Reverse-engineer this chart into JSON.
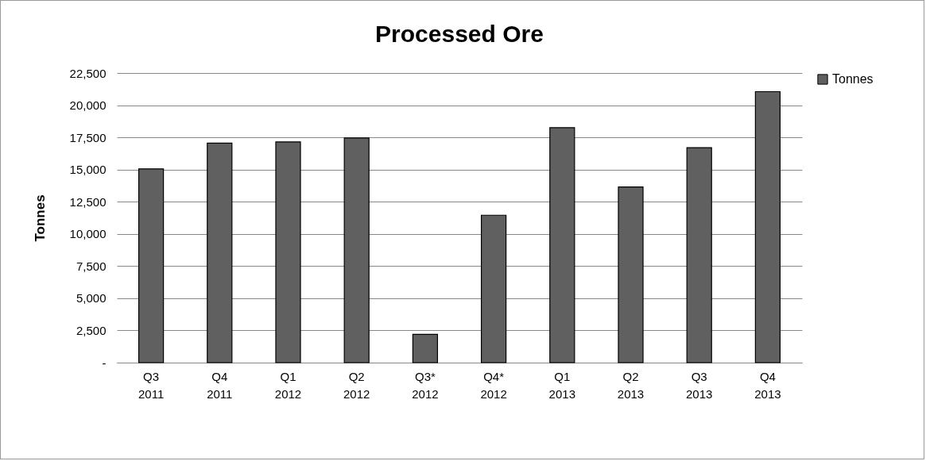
{
  "chart_data": {
    "type": "bar",
    "title": "Processed Ore",
    "ylabel": "Tonnes",
    "categories": [
      "Q3 2011",
      "Q4 2011",
      "Q1 2012",
      "Q2 2012",
      "Q3* 2012",
      "Q4* 2012",
      "Q1 2013",
      "Q2 2013",
      "Q3 2013",
      "Q4 2013"
    ],
    "series": [
      {
        "name": "Tonnes",
        "color": "#606060",
        "values": [
          15050,
          17050,
          17150,
          17450,
          2200,
          11450,
          18250,
          13650,
          16700,
          21050
        ]
      }
    ],
    "ylim": [
      0,
      22500
    ],
    "yticks": [
      {
        "value": 0,
        "label": "-"
      },
      {
        "value": 2500,
        "label": "2,500"
      },
      {
        "value": 5000,
        "label": "5,000"
      },
      {
        "value": 7500,
        "label": "7,500"
      },
      {
        "value": 10000,
        "label": "10,000"
      },
      {
        "value": 12500,
        "label": "12,500"
      },
      {
        "value": 15000,
        "label": "15,000"
      },
      {
        "value": 17500,
        "label": "17,500"
      },
      {
        "value": 20000,
        "label": "20,000"
      },
      {
        "value": 22500,
        "label": "22,500"
      }
    ],
    "grid": "y",
    "legend": "right"
  }
}
